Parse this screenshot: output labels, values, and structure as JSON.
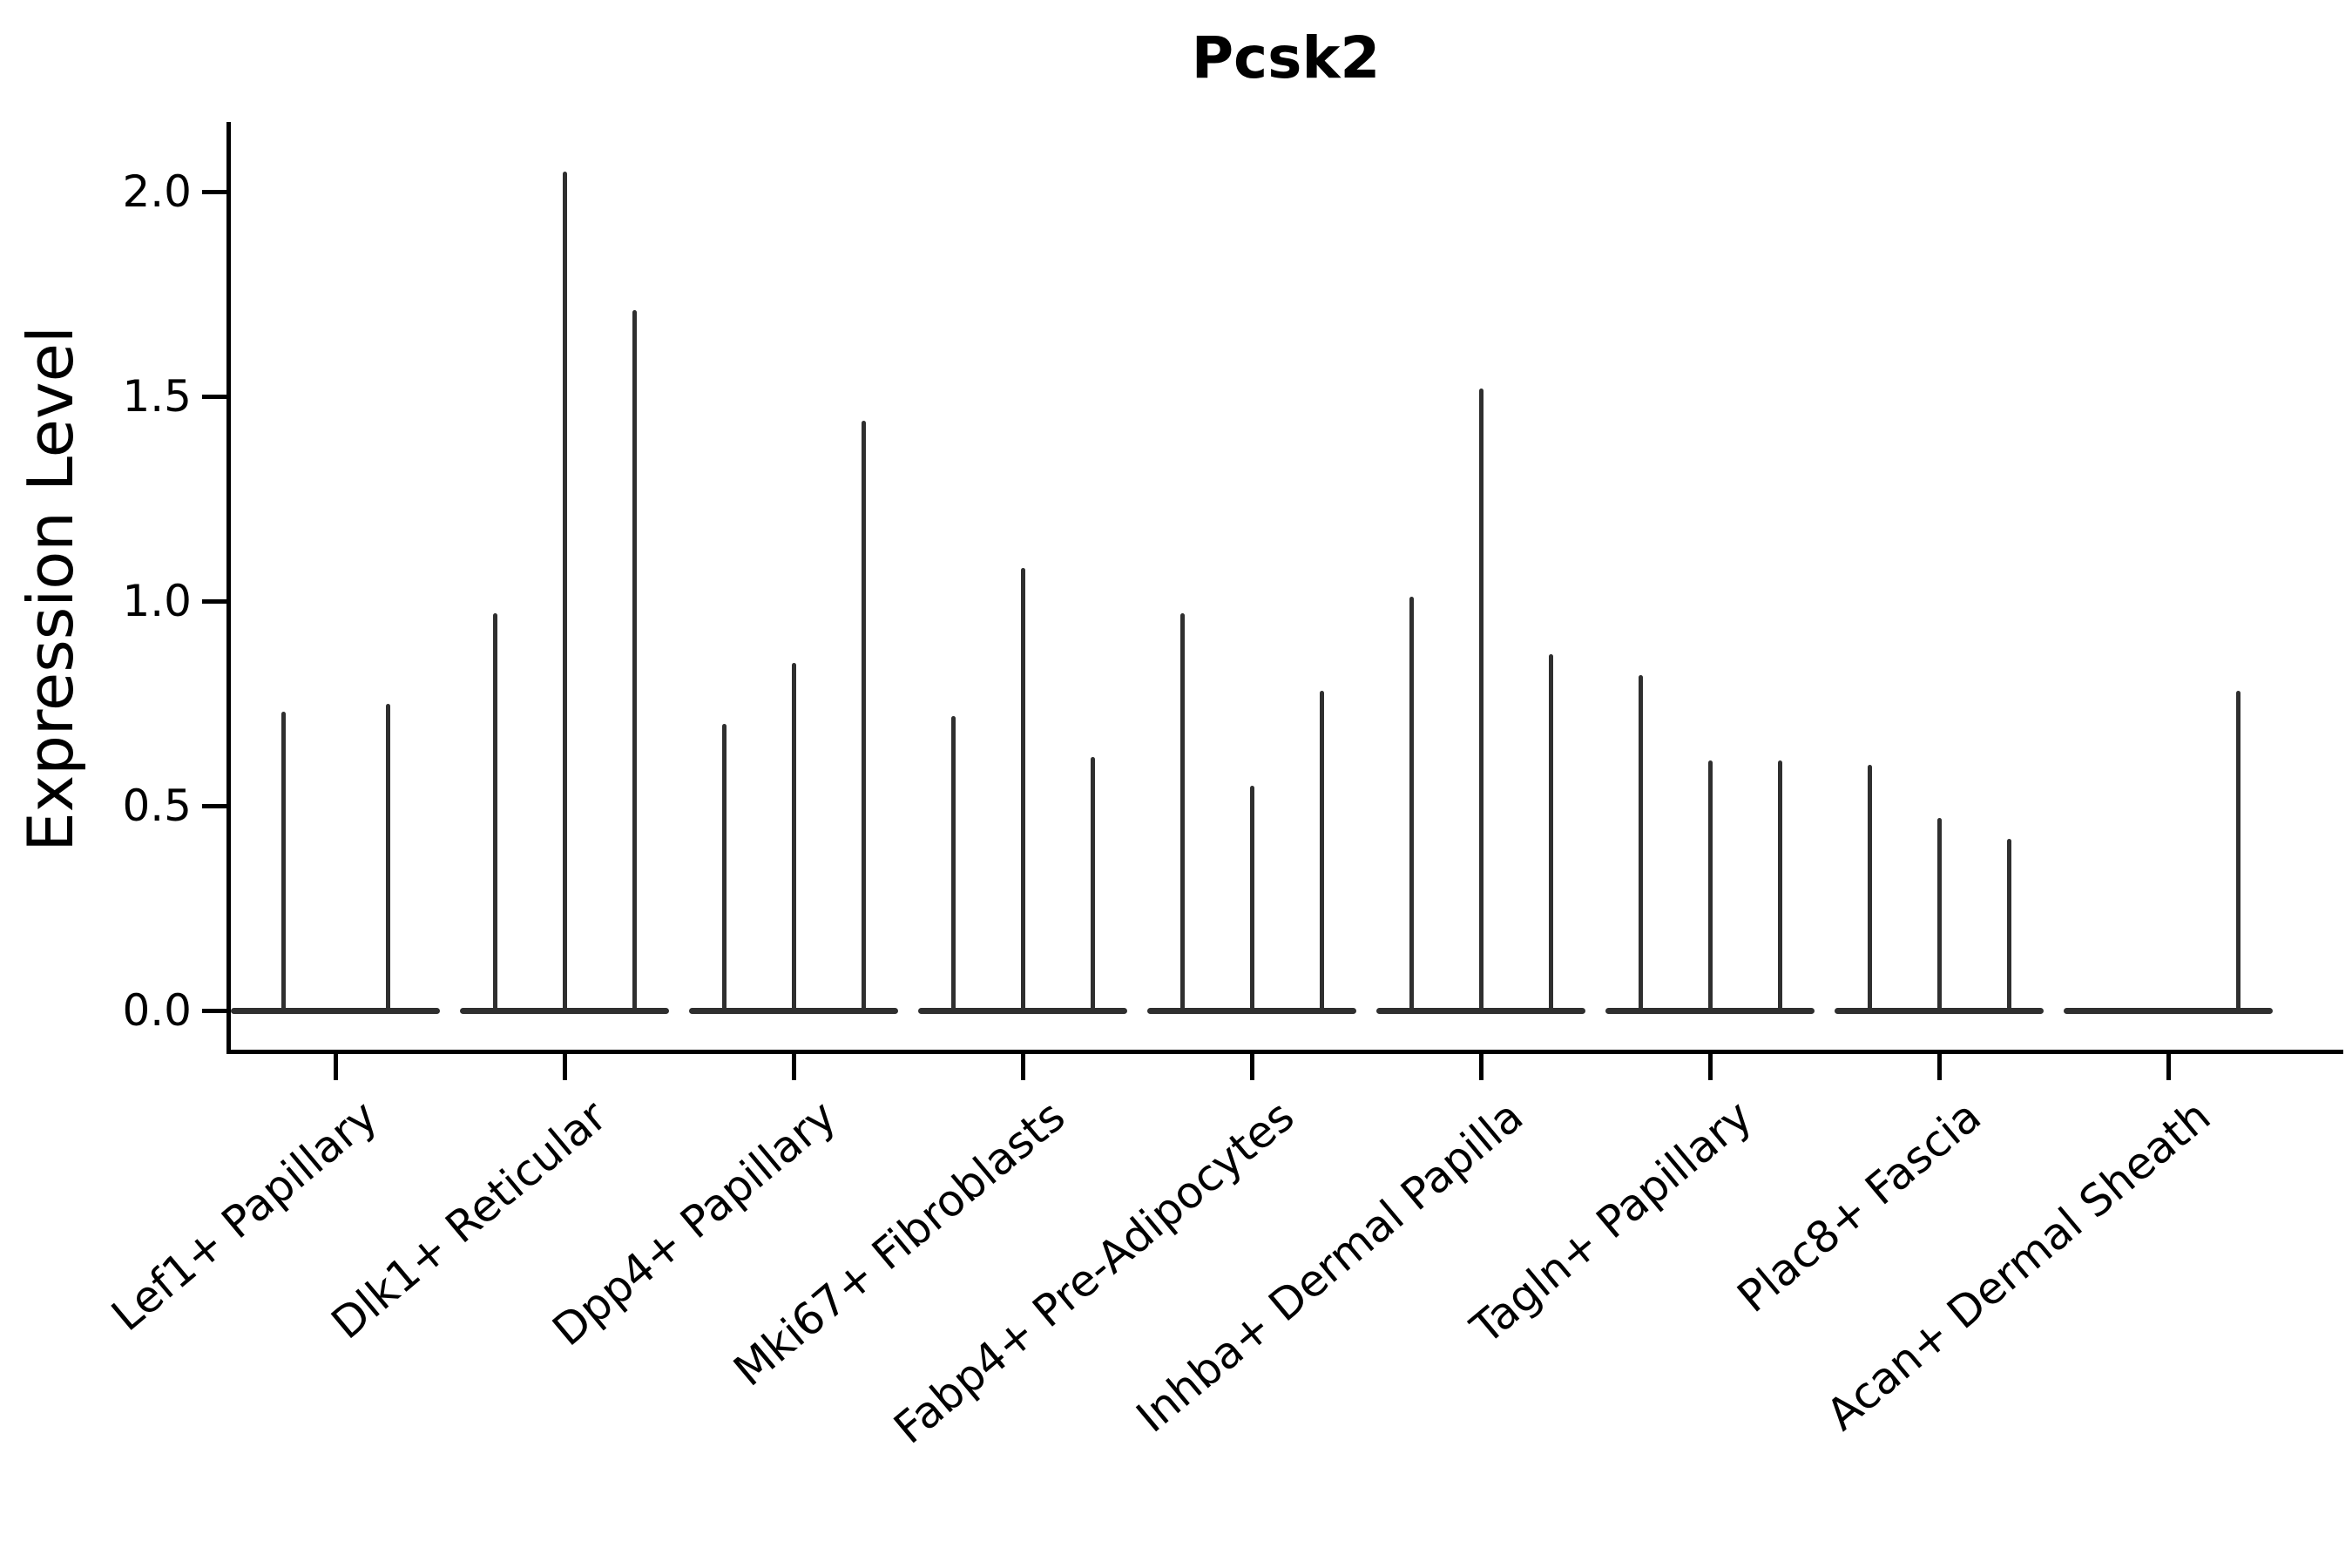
{
  "title": "Pcsk2",
  "y_axis": {
    "label": "Expression Level",
    "ticks": [
      {
        "value": 2.0,
        "label": "2.0"
      },
      {
        "value": 1.5,
        "label": "1.5"
      },
      {
        "value": 1.0,
        "label": "1.0"
      },
      {
        "value": 0.5,
        "label": "0.5"
      },
      {
        "value": 0.0,
        "label": "0.0"
      }
    ]
  },
  "chart_data": {
    "type": "violin",
    "title": "Pcsk2",
    "xlabel": "",
    "ylabel": "Expression Level",
    "ylim": [
      0.0,
      2.15
    ],
    "yticks": [
      0.0,
      0.5,
      1.0,
      1.5,
      2.0
    ],
    "grid": false,
    "legend_position": "none",
    "categories": [
      "Lef1+ Papillary",
      "Dlk1+ Reticular",
      "Dpp4+ Papillary",
      "Mki67+ Fibroblasts",
      "Fabp4+ Pre-Adipocytes",
      "Inhba+ Dermal Papilla",
      "Tagln+ Papillary",
      "Plac8+ Fascia",
      "Acan+ Dermal Sheath"
    ],
    "series": [
      {
        "category": "Lef1+ Papillary",
        "violin_peaks": [
          0.73,
          0.75
        ]
      },
      {
        "category": "Dlk1+ Reticular",
        "violin_peaks": [
          0.97,
          2.05,
          1.71
        ]
      },
      {
        "category": "Dpp4+ Papillary",
        "violin_peaks": [
          0.7,
          0.85,
          1.44
        ]
      },
      {
        "category": "Mki67+ Fibroblasts",
        "violin_peaks": [
          0.72,
          1.08,
          0.62
        ]
      },
      {
        "category": "Fabp4+ Pre-Adipocytes",
        "violin_peaks": [
          0.97,
          0.55,
          0.78
        ]
      },
      {
        "category": "Inhba+ Dermal Papilla",
        "violin_peaks": [
          1.01,
          1.52,
          0.87
        ]
      },
      {
        "category": "Tagln+ Papillary",
        "violin_peaks": [
          0.82,
          0.61,
          0.61
        ]
      },
      {
        "category": "Plac8+ Fascia",
        "violin_peaks": [
          0.6,
          0.47,
          0.42
        ]
      },
      {
        "category": "Acan+ Dermal Sheath",
        "violin_peaks": [
          0.0,
          0.0,
          0.78
        ]
      }
    ],
    "violin_shape_note": "expression mass concentrated at 0 (flat body on baseline) with thin spike up to the per-violin maximum",
    "colors": {
      "violin": "#2f2f2f",
      "axis": "#000000",
      "text": "#000000",
      "background": "#ffffff"
    }
  }
}
